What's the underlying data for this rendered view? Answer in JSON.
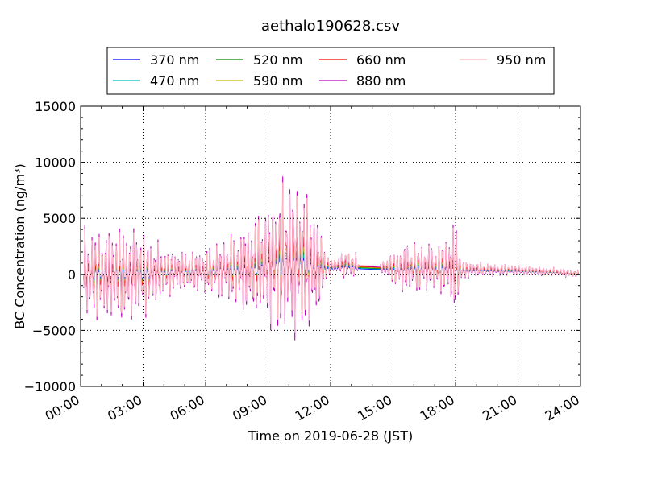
{
  "chart_data": {
    "type": "line",
    "title": "aethalo190628.csv",
    "xlabel": "Time on 2019-06-28 (JST)",
    "ylabel": "BC Concentration (ng/m³)",
    "ylim": [
      -10000,
      15000
    ],
    "xlim": [
      "00:00",
      "24:00"
    ],
    "x_ticks": [
      "00:00",
      "03:00",
      "06:00",
      "09:00",
      "12:00",
      "15:00",
      "18:00",
      "21:00",
      "24:00"
    ],
    "y_ticks": [
      "−10000",
      "−5000",
      "0",
      "5000",
      "10000",
      "15000"
    ],
    "grid": true,
    "legend_position": "top",
    "series": [
      {
        "name": "370 nm",
        "color": "#0000ff"
      },
      {
        "name": "470 nm",
        "color": "#00bfbf"
      },
      {
        "name": "520 nm",
        "color": "#008000"
      },
      {
        "name": "590 nm",
        "color": "#bfbf00"
      },
      {
        "name": "660 nm",
        "color": "#ff0000"
      },
      {
        "name": "880 nm",
        "color": "#bf00bf"
      },
      {
        "name": "950 nm",
        "color": "#ffb6c1"
      }
    ],
    "envelope": {
      "hours": [
        0,
        1,
        2,
        3,
        4,
        5,
        6,
        7,
        8,
        9,
        9.5,
        10,
        10.5,
        11,
        11.5,
        12,
        12.8,
        13.5,
        14.5,
        15.5,
        16,
        17,
        17.5,
        18,
        18.3,
        19,
        20,
        21,
        22,
        23,
        24
      ],
      "amplitude": [
        4500,
        4500,
        5000,
        4200,
        2500,
        2000,
        2200,
        3200,
        4500,
        6000,
        7500,
        8000,
        7500,
        7000,
        4000,
        500,
        1500,
        900,
        700,
        2500,
        2500,
        2300,
        2800,
        5000,
        1000,
        700,
        600,
        500,
        450,
        400,
        350
      ],
      "baseline": [
        0,
        0,
        0,
        0,
        200,
        300,
        300,
        500,
        500,
        1000,
        1200,
        1500,
        1500,
        1000,
        700,
        800,
        1000,
        800,
        700,
        500,
        700,
        600,
        700,
        600,
        400,
        500,
        400,
        400,
        300,
        200,
        0
      ],
      "gap_hours": [
        13.3,
        14.4
      ]
    }
  }
}
